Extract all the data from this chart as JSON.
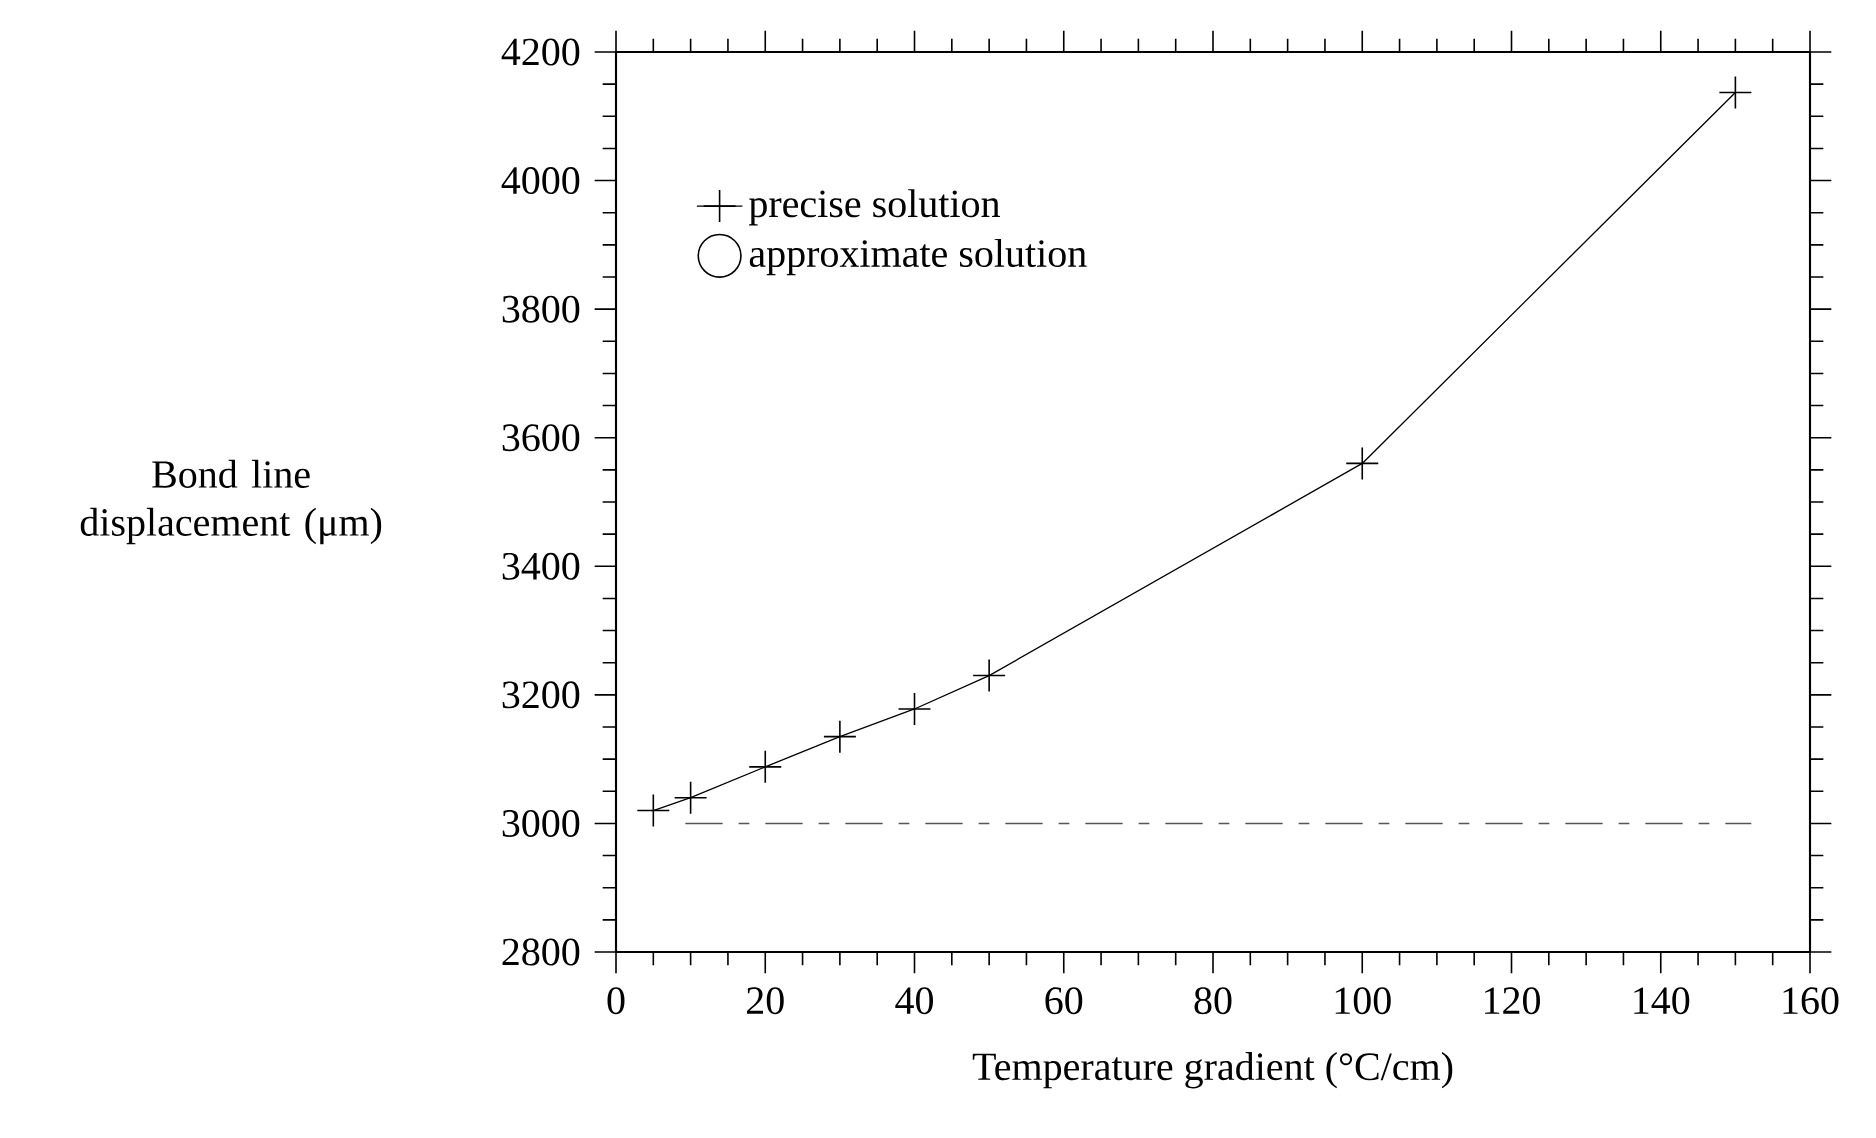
{
  "chart_data": {
    "type": "line",
    "xlabel": "Temperature gradient (°C/cm)",
    "ylabel": "Bond line displacement (μm)",
    "x": [
      5,
      10,
      20,
      30,
      40,
      50,
      100,
      150
    ],
    "series": [
      {
        "name": "precise solution",
        "color": "#000000",
        "marker": "cross",
        "line_style": "solid",
        "values": [
          3020,
          3040,
          3088,
          3135,
          3178,
          3230,
          3560,
          4137
        ]
      },
      {
        "name": "approximate solution",
        "color": "#000000",
        "marker": "circle",
        "values": [
          null,
          null,
          null,
          null,
          null,
          null,
          null,
          null
        ]
      }
    ],
    "ref_lines": [
      {
        "axis": "y",
        "value": 3000,
        "color": "#555555",
        "line_style": "dashed"
      }
    ],
    "xlim": [
      0,
      160
    ],
    "xticks": [
      0,
      20,
      40,
      60,
      80,
      100,
      120,
      140,
      160
    ],
    "ylim": [
      2800,
      4200
    ],
    "yticks": [
      2800,
      3000,
      3200,
      3400,
      3600,
      3800,
      4000,
      4200
    ],
    "grid": false,
    "legend": "top left"
  }
}
